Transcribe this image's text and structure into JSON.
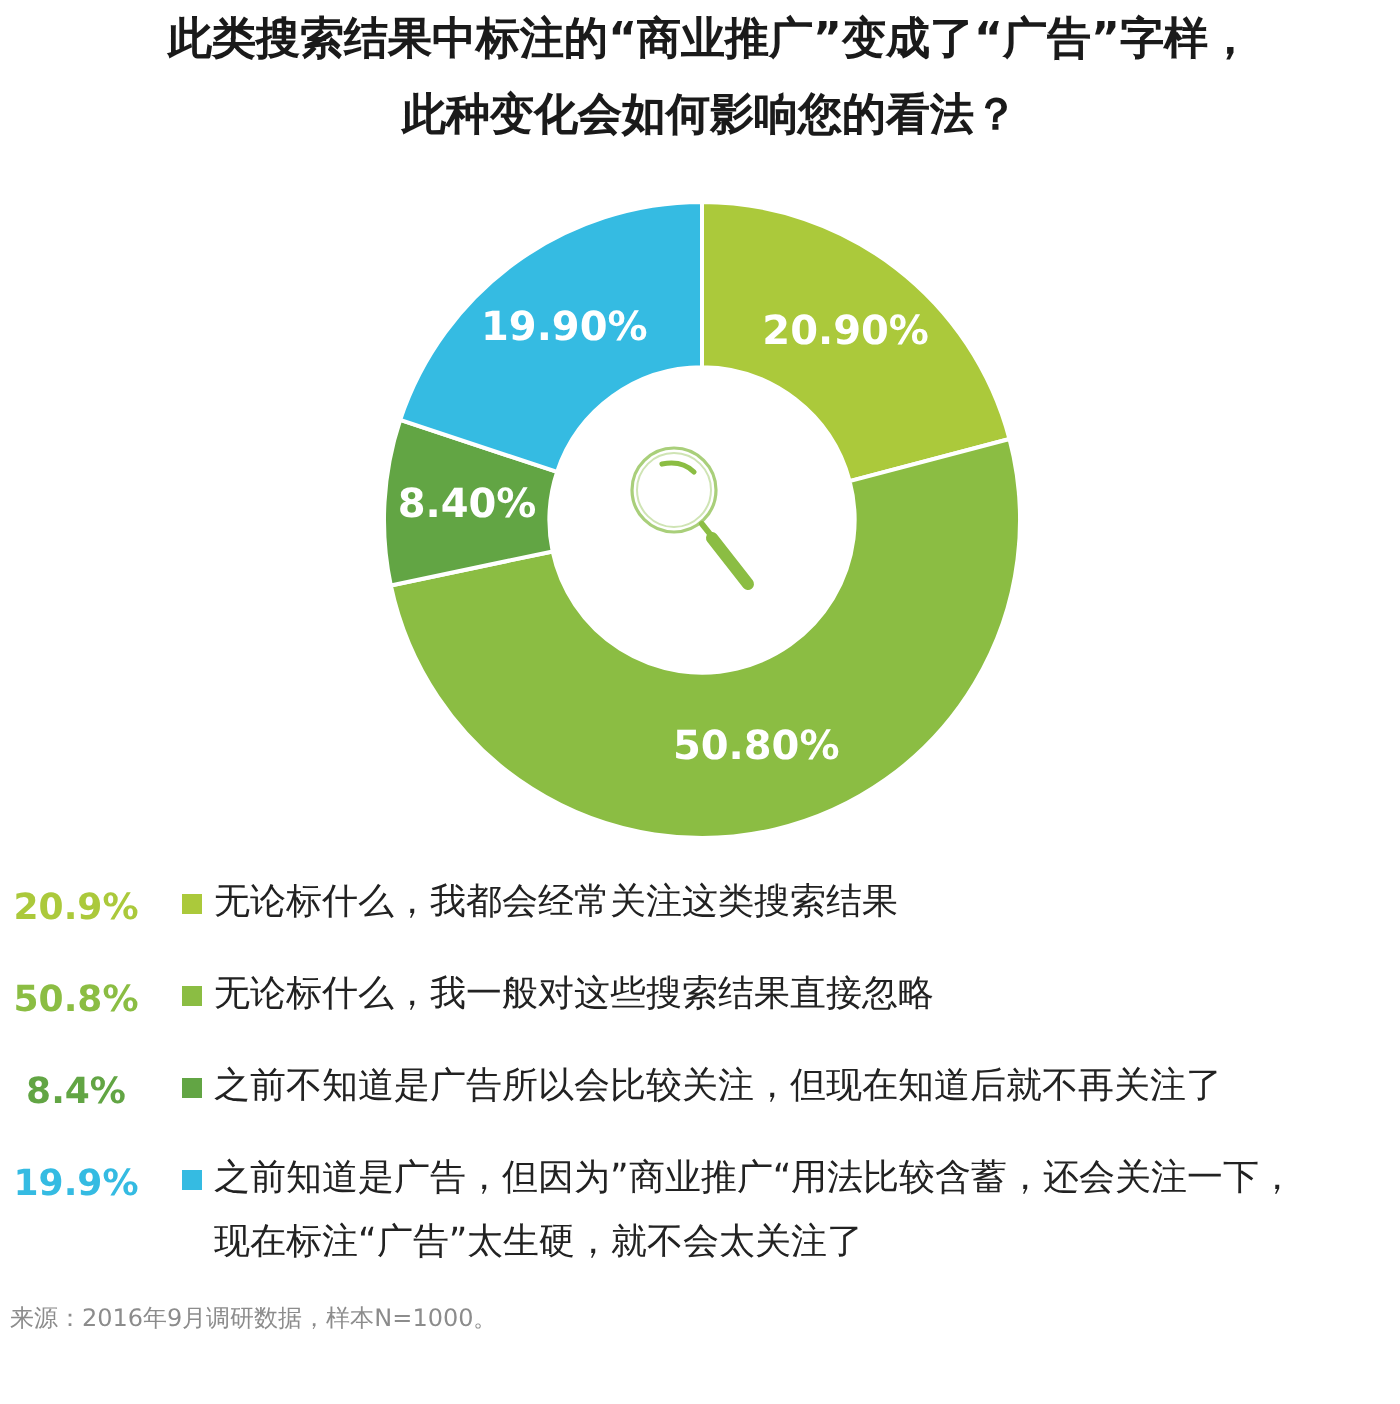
{
  "chart_data": {
    "type": "donut",
    "title": "此类搜索结果中标注的“商业推广”变成了“广告”字样，此种变化会如何影响您的看法？",
    "categories": [
      "无论标什么，我都会经常关注这类搜索结果",
      "无论标什么，我一般对这些搜索结果直接忽略",
      "之前不知道是广告所以会比较关注，但现在知道后就不再关注了",
      "之前知道是广告，但因为”商业推广“用法比较含蓄，还会关注一下，现在标注“广告”太生硬，就不会太关注了"
    ],
    "values": [
      20.9,
      50.8,
      8.4,
      19.9
    ],
    "colors": [
      "#abc93b",
      "#8bbd43",
      "#62a544",
      "#35bbe2"
    ],
    "value_labels": [
      "20.90%",
      "50.80%",
      "8.40%",
      "19.90%"
    ],
    "legend": "bottom",
    "annotations": [
      "20.9%",
      "50.8%",
      "8.4%",
      "19.9%",
      "来源：2016年9月调研数据，样本N=1000。"
    ]
  }
}
